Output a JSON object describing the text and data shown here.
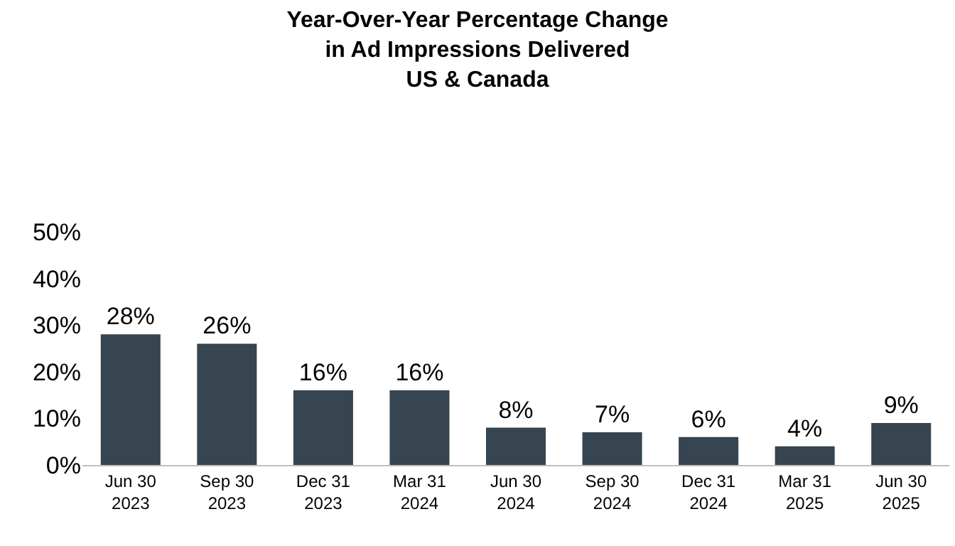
{
  "chart_data": {
    "type": "bar",
    "title": "Year-Over-Year Percentage Change\nin Ad Impressions Delivered\nUS & Canada",
    "categories": [
      "Jun 30\n2023",
      "Sep 30\n2023",
      "Dec 31\n2023",
      "Mar 31\n2024",
      "Jun 30\n2024",
      "Sep 30\n2024",
      "Dec 31\n2024",
      "Mar 31\n2025",
      "Jun 30\n2025"
    ],
    "values": [
      28,
      26,
      16,
      16,
      8,
      7,
      6,
      4,
      9
    ],
    "value_labels": [
      "28%",
      "26%",
      "16%",
      "16%",
      "8%",
      "7%",
      "6%",
      "4%",
      "9%"
    ],
    "color": "#36454f",
    "ylim": [
      0,
      50
    ],
    "yticks": [
      {
        "value": 0,
        "label": "0%"
      },
      {
        "value": 10,
        "label": "10%"
      },
      {
        "value": 20,
        "label": "20%"
      },
      {
        "value": 30,
        "label": "30%"
      },
      {
        "value": 40,
        "label": "40%"
      },
      {
        "value": 50,
        "label": "50%"
      }
    ],
    "grid": false
  }
}
